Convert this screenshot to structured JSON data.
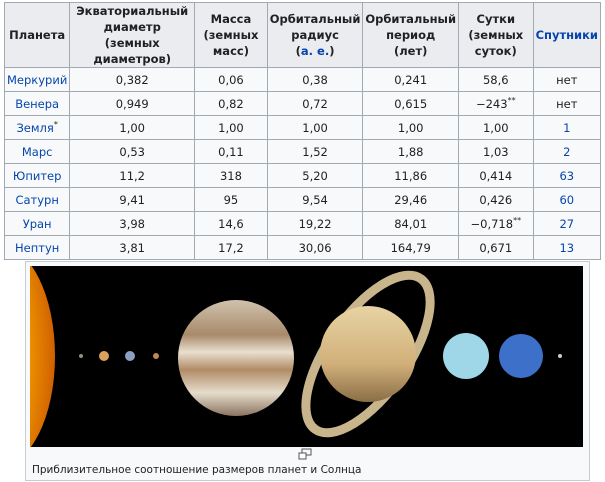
{
  "table": {
    "headers": [
      {
        "lines": [
          "Планета"
        ]
      },
      {
        "lines": [
          "Экваториальный",
          "диаметр",
          "(земных диаметров)"
        ]
      },
      {
        "lines": [
          "Масса",
          "(земных масс)"
        ]
      },
      {
        "lines": [
          "Орбитальный",
          "радиус"
        ],
        "unit_open": "(",
        "unit": "а. е.",
        "unit_close": ")"
      },
      {
        "lines": [
          "Орбитальный",
          "период",
          "(лет)"
        ]
      },
      {
        "lines": [
          "Сутки",
          "(земных суток)"
        ]
      },
      {
        "link": "Спутники"
      }
    ],
    "rows": [
      {
        "planet": "Меркурий",
        "values": [
          "0,382",
          "0,06",
          "0,38",
          "0,241",
          "58,6"
        ],
        "satellites": "нет",
        "satellites_link": false
      },
      {
        "planet": "Венера",
        "values": [
          "0,949",
          "0,82",
          "0,72",
          "0,615",
          {
            "text": "−243",
            "sup": "**"
          }
        ],
        "satellites": "нет",
        "satellites_link": false
      },
      {
        "planet": "Земля",
        "planet_sup": "*",
        "values": [
          "1,00",
          "1,00",
          "1,00",
          "1,00",
          "1,00"
        ],
        "satellites": "1",
        "satellites_link": true
      },
      {
        "planet": "Марс",
        "values": [
          "0,53",
          "0,11",
          "1,52",
          "1,88",
          "1,03"
        ],
        "satellites": "2",
        "satellites_link": true
      },
      {
        "planet": "Юпитер",
        "values": [
          "11,2",
          "318",
          "5,20",
          "11,86",
          "0,414"
        ],
        "satellites": "63",
        "satellites_link": true
      },
      {
        "planet": "Сатурн",
        "values": [
          "9,41",
          "95",
          "9,54",
          "29,46",
          "0,426"
        ],
        "satellites": "60",
        "satellites_link": true
      },
      {
        "planet": "Уран",
        "values": [
          "3,98",
          "14,6",
          "19,22",
          "84,01",
          {
            "text": "−0,718",
            "sup": "**"
          }
        ],
        "satellites": "27",
        "satellites_link": true
      },
      {
        "planet": "Нептун",
        "values": [
          "3,81",
          "17,2",
          "30,06",
          "164,79",
          "0,671"
        ],
        "satellites": "13",
        "satellites_link": true
      }
    ]
  },
  "figure": {
    "caption": "Приблизительное соотношение размеров планет и Солнца"
  }
}
